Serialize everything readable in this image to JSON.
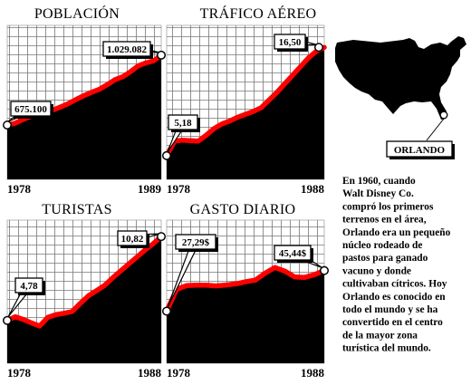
{
  "chart_data": [
    {
      "type": "area",
      "title": "POBLACIÓN",
      "x_start": "1978",
      "x_end": "1989",
      "start_value": "675.100",
      "end_value": "1.029.082",
      "series": [
        {
          "values": [
            675100,
            684000,
            703000,
            718000,
            733000,
            745000,
            752000,
            768000,
            785000,
            806000,
            825000,
            842000,
            857000,
            880000,
            905000,
            920000,
            945000,
            975000,
            990000,
            1000000,
            1029082
          ]
        }
      ],
      "ylim": [
        400000,
        1180000
      ],
      "grid": true
    },
    {
      "type": "area",
      "title": "TRÁFICO AÉREO",
      "x_start": "1978",
      "x_end": "1988",
      "start_value": "5,18",
      "end_value": "16,50",
      "series": [
        {
          "values": [
            5.18,
            6.7,
            6.8,
            6.75,
            6.7,
            7.3,
            8.0,
            8.5,
            8.8,
            9.2,
            9.5,
            9.8,
            10.2,
            11.0,
            11.8,
            12.7,
            13.6,
            14.5,
            15.4,
            16.1,
            16.5
          ]
        }
      ],
      "ylim": [
        2.7,
        18.8
      ],
      "grid": true
    },
    {
      "type": "area",
      "title": "TURISTAS",
      "x_start": "1978",
      "x_end": "1988",
      "start_value": "4,78",
      "end_value": "10,82",
      "series": [
        {
          "values": [
            4.78,
            5.05,
            4.85,
            4.6,
            4.38,
            5.0,
            5.2,
            5.3,
            5.42,
            6.0,
            6.55,
            6.92,
            7.3,
            7.85,
            8.35,
            8.85,
            9.35,
            9.85,
            10.3,
            10.82
          ]
        }
      ],
      "ylim": [
        1.7,
        12.0
      ],
      "grid": true
    },
    {
      "type": "area",
      "title": "GASTO DIARIO",
      "x_start": "1978",
      "x_end": "1988",
      "start_value": "27,29$",
      "end_value": "45,44$",
      "series": [
        {
          "values": [
            27.29,
            37.0,
            38.7,
            38.9,
            38.9,
            38.6,
            39.0,
            39.5,
            40.4,
            41.2,
            44.3,
            46.8,
            45.2,
            42.6,
            42.4,
            43.6,
            45.44
          ]
        }
      ],
      "ylim": [
        4.0,
        68.0
      ],
      "grid": true
    }
  ],
  "map": {
    "label": "ORLANDO"
  },
  "caption": [
    "En 1960, cuando",
    "Walt Disney Co.",
    "compró los primeros",
    "terrenos en el área,",
    "Orlando era un pequeño",
    "núcleo rodeado de",
    "pastos para ganado",
    "vacuno y donde",
    "cultivaban cítricos. Hoy",
    "Orlando es conocido en",
    "todo el mundo y se ha",
    "convertido en el centro",
    "de la mayor zona",
    "turística del mundo."
  ]
}
